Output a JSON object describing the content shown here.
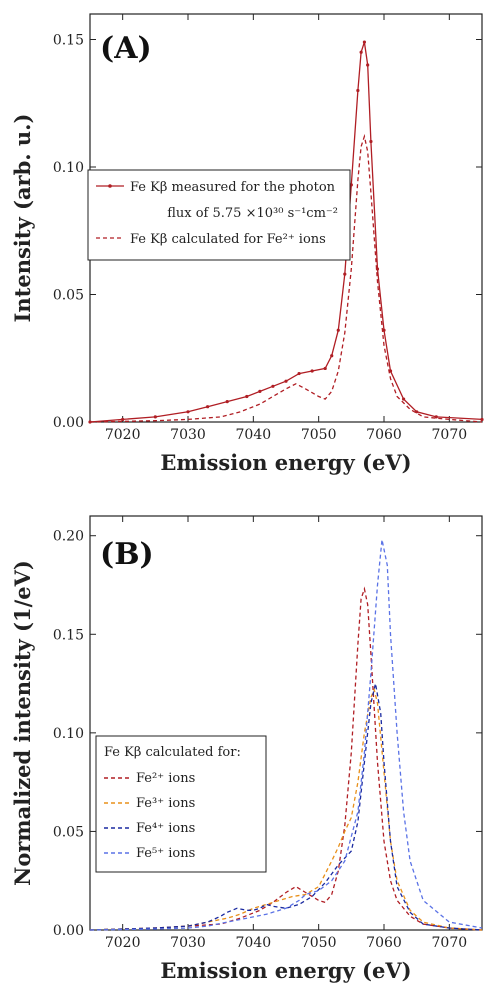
{
  "chart_data": [
    {
      "type": "line",
      "panel_label": "(A)",
      "xlabel": "Emission energy (eV)",
      "ylabel": "Intensity (arb. u.)",
      "xlim": [
        7015,
        7075
      ],
      "ylim": [
        0,
        0.16
      ],
      "xticks": [
        7020,
        7030,
        7040,
        7050,
        7060,
        7070
      ],
      "yticks": [
        0.0,
        0.05,
        0.1,
        0.15
      ],
      "ytick_labels": [
        "0.00",
        "0.05",
        "0.10",
        "0.15"
      ],
      "grid": false,
      "legend_position": "center-left",
      "series": [
        {
          "name": "Fe Kβ measured for the photon flux of 5.75×10³⁰ s⁻¹cm⁻²",
          "legend_lines": [
            "Fe Kβ measured for the photon",
            "flux of 5.75 ×10³⁰ s⁻¹cm⁻²"
          ],
          "style": "solid-markers",
          "color": "#b01e24",
          "x": [
            7015,
            7020,
            7025,
            7030,
            7033,
            7036,
            7039,
            7041,
            7043,
            7045,
            7047,
            7049,
            7051,
            7052,
            7053,
            7054,
            7055,
            7056,
            7056.5,
            7057,
            7057.5,
            7058,
            7059,
            7060,
            7061,
            7063,
            7065,
            7068,
            7075
          ],
          "y": [
            0.0,
            0.001,
            0.002,
            0.004,
            0.006,
            0.008,
            0.01,
            0.012,
            0.014,
            0.016,
            0.019,
            0.02,
            0.021,
            0.026,
            0.036,
            0.058,
            0.093,
            0.13,
            0.145,
            0.149,
            0.14,
            0.11,
            0.06,
            0.036,
            0.02,
            0.009,
            0.004,
            0.002,
            0.001
          ]
        },
        {
          "name": "Fe Kβ calculated for Fe²⁺ ions",
          "legend_lines": [
            "Fe Kβ calculated for Fe²⁺ ions"
          ],
          "style": "dashed",
          "color": "#b01e24",
          "x": [
            7015,
            7025,
            7030,
            7035,
            7038,
            7041,
            7043,
            7045,
            7046.5,
            7048,
            7050,
            7051,
            7052,
            7053,
            7054,
            7055,
            7056,
            7056.5,
            7057,
            7057.5,
            7058,
            7059,
            7060,
            7061,
            7062,
            7064,
            7066,
            7070,
            7075
          ],
          "y": [
            0.0,
            0.0005,
            0.001,
            0.002,
            0.004,
            0.007,
            0.01,
            0.013,
            0.015,
            0.013,
            0.01,
            0.009,
            0.012,
            0.02,
            0.035,
            0.06,
            0.095,
            0.108,
            0.112,
            0.106,
            0.09,
            0.055,
            0.03,
            0.017,
            0.01,
            0.005,
            0.002,
            0.001,
            0.0
          ]
        }
      ]
    },
    {
      "type": "line",
      "panel_label": "(B)",
      "xlabel": "Emission energy (eV)",
      "ylabel": "Normalized intensity (1/eV)",
      "xlim": [
        7015,
        7075
      ],
      "ylim": [
        0,
        0.21
      ],
      "xticks": [
        7020,
        7030,
        7040,
        7050,
        7060,
        7070
      ],
      "yticks": [
        0.0,
        0.05,
        0.1,
        0.15,
        0.2
      ],
      "ytick_labels": [
        "0.00",
        "0.05",
        "0.10",
        "0.15",
        "0.20"
      ],
      "grid": false,
      "legend_title": "Fe Kβ calculated for:",
      "legend_position": "lower-left",
      "series": [
        {
          "name": "Fe²⁺ ions",
          "style": "dashed",
          "color": "#b01e24",
          "x": [
            7015,
            7025,
            7030,
            7035,
            7038,
            7041,
            7043,
            7045,
            7046.5,
            7048,
            7050,
            7051,
            7052,
            7053,
            7054,
            7055,
            7056,
            7056.5,
            7057,
            7057.5,
            7058,
            7059,
            7060,
            7061,
            7062,
            7064,
            7066,
            7070,
            7075
          ],
          "y": [
            0.0,
            0.001,
            0.002,
            0.003,
            0.006,
            0.01,
            0.014,
            0.019,
            0.022,
            0.019,
            0.015,
            0.014,
            0.018,
            0.03,
            0.053,
            0.09,
            0.145,
            0.168,
            0.173,
            0.165,
            0.14,
            0.085,
            0.045,
            0.025,
            0.015,
            0.007,
            0.003,
            0.001,
            0.0
          ]
        },
        {
          "name": "Fe³⁺ ions",
          "style": "dashed",
          "color": "#e8901a",
          "x": [
            7015,
            7025,
            7030,
            7033,
            7036,
            7038,
            7040,
            7042,
            7044,
            7046,
            7048,
            7050,
            7052,
            7053,
            7054,
            7055,
            7056,
            7057,
            7058,
            7058.5,
            7059,
            7060,
            7061,
            7062,
            7064,
            7066,
            7070,
            7075
          ],
          "y": [
            0.0,
            0.001,
            0.002,
            0.004,
            0.006,
            0.008,
            0.011,
            0.013,
            0.015,
            0.017,
            0.018,
            0.022,
            0.035,
            0.042,
            0.05,
            0.057,
            0.075,
            0.1,
            0.118,
            0.122,
            0.115,
            0.08,
            0.045,
            0.025,
            0.01,
            0.004,
            0.001,
            0.0
          ]
        },
        {
          "name": "Fe⁴⁺ ions",
          "style": "dashed",
          "color": "#1a2aa0",
          "x": [
            7015,
            7025,
            7030,
            7033,
            7035,
            7036,
            7037.5,
            7039,
            7040,
            7041,
            7042,
            7043,
            7045,
            7047,
            7049,
            7051,
            7053,
            7055,
            7056,
            7057,
            7058,
            7058.7,
            7059.5,
            7060,
            7061,
            7062,
            7064,
            7066,
            7070,
            7075
          ],
          "y": [
            0.0,
            0.001,
            0.002,
            0.004,
            0.007,
            0.009,
            0.011,
            0.01,
            0.01,
            0.011,
            0.013,
            0.012,
            0.011,
            0.013,
            0.017,
            0.024,
            0.033,
            0.04,
            0.055,
            0.085,
            0.115,
            0.125,
            0.11,
            0.085,
            0.045,
            0.022,
            0.009,
            0.003,
            0.001,
            0.0
          ]
        },
        {
          "name": "Fe⁵⁺ ions",
          "style": "dashed",
          "color": "#5a72e6",
          "x": [
            7015,
            7025,
            7030,
            7033,
            7036,
            7039,
            7042,
            7045,
            7047,
            7048,
            7050,
            7052,
            7054,
            7056,
            7057,
            7058,
            7059,
            7059.7,
            7060.5,
            7061,
            7062,
            7063,
            7064,
            7066,
            7070,
            7075
          ],
          "y": [
            0.0,
            0.0005,
            0.001,
            0.002,
            0.004,
            0.006,
            0.008,
            0.011,
            0.015,
            0.018,
            0.02,
            0.025,
            0.035,
            0.06,
            0.09,
            0.13,
            0.175,
            0.198,
            0.185,
            0.15,
            0.1,
            0.06,
            0.035,
            0.015,
            0.004,
            0.001
          ]
        }
      ]
    }
  ]
}
